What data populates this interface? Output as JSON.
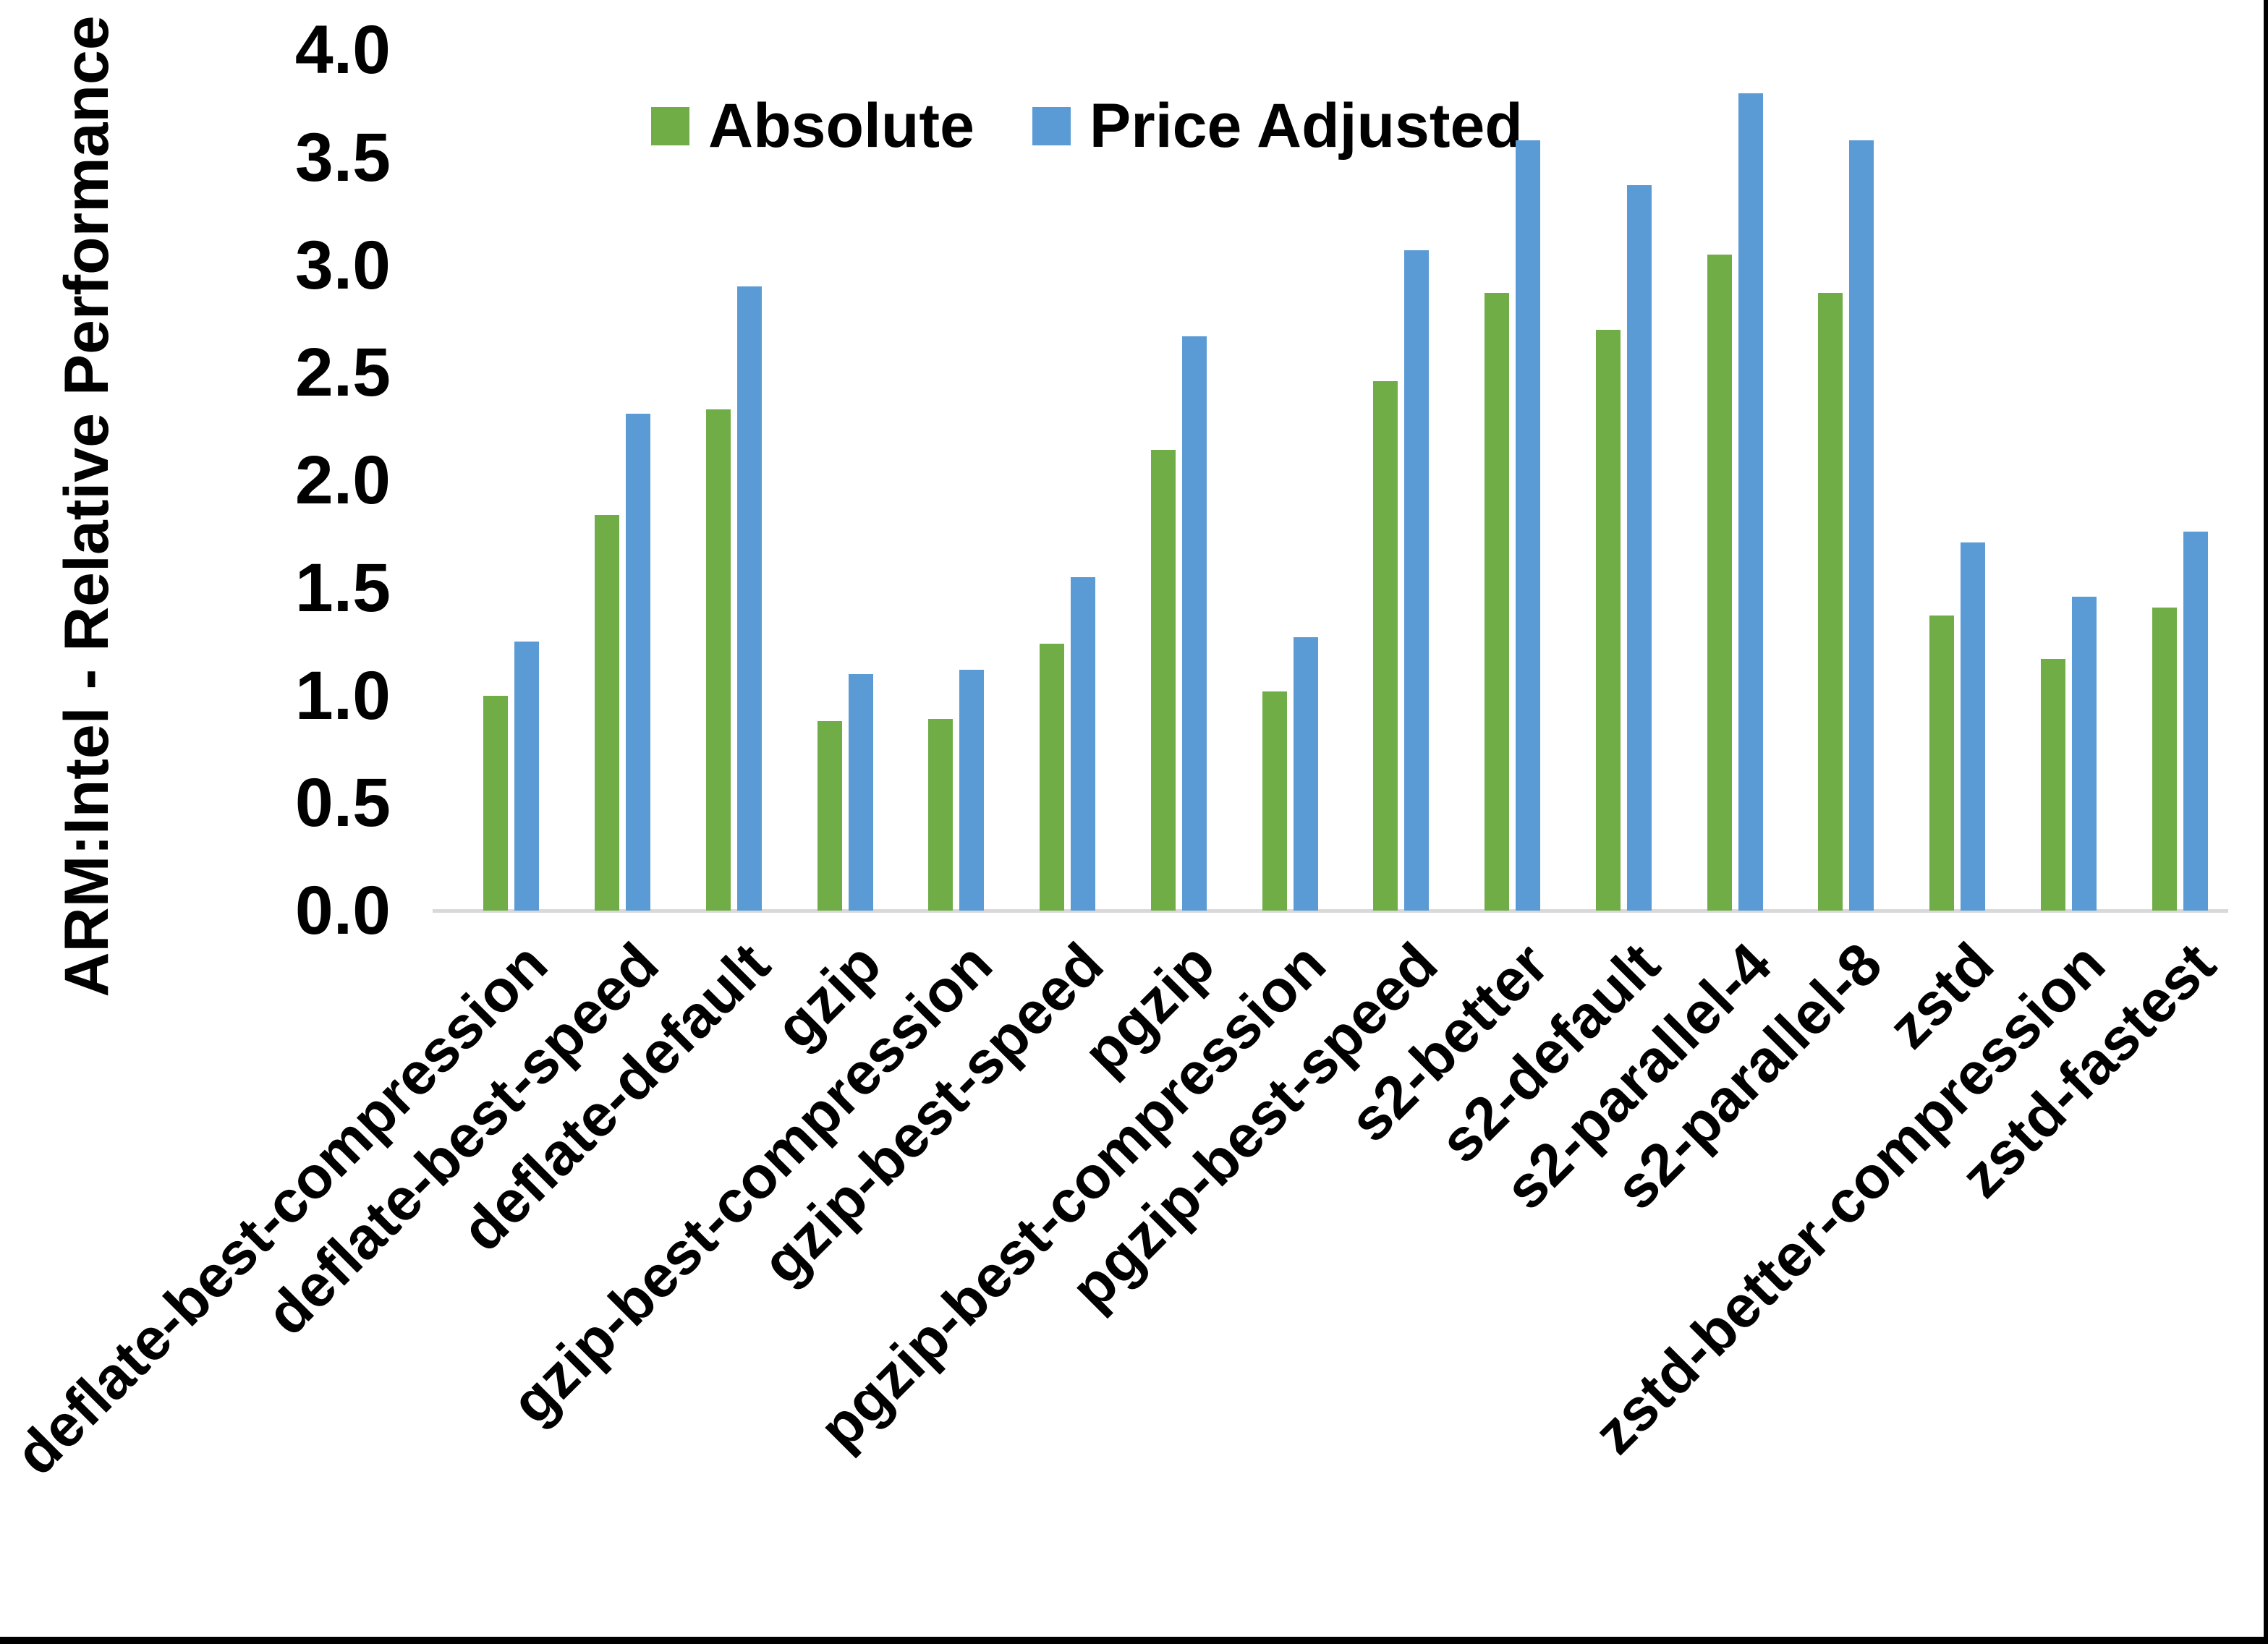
{
  "figure": {
    "colors": {
      "absolute_green": "#70AD47",
      "price_adjusted_blue": "#5B9BD5",
      "axis_line_gray": "#D9D9D9",
      "text": "#000000",
      "edge_border": "#000000"
    }
  },
  "chart_data": {
    "type": "bar",
    "title": "",
    "xlabel": "",
    "ylabel": "ARM:Intel - Relative Performance",
    "ylim": [
      0.0,
      4.0
    ],
    "ytick_step": 0.5,
    "yticks": [
      "0.0",
      "0.5",
      "1.0",
      "1.5",
      "2.0",
      "2.5",
      "3.0",
      "3.5",
      "4.0"
    ],
    "grid": false,
    "legend_position": "top-center",
    "categories": [
      "deflate-best-compression",
      "deflate-best-speed",
      "deflate-default",
      "gzip",
      "gzip-best-compression",
      "gzip-best-speed",
      "pgzip",
      "pgzip-best-compression",
      "pgzip-best-speed",
      "s2-better",
      "s2-default",
      "s2-parallel-4",
      "s2-parallel-8",
      "zstd",
      "zstd-better-compression",
      "zstd-fastest"
    ],
    "series": [
      {
        "name": "Absolute",
        "color": "#70AD47",
        "values": [
          1.0,
          1.84,
          2.33,
          0.88,
          0.89,
          1.24,
          2.14,
          1.02,
          2.46,
          2.87,
          2.7,
          3.05,
          2.87,
          1.37,
          1.17,
          1.41
        ]
      },
      {
        "name": "Price Adjusted",
        "color": "#5B9BD5",
        "values": [
          1.25,
          2.31,
          2.9,
          1.1,
          1.12,
          1.55,
          2.67,
          1.27,
          3.07,
          3.58,
          3.37,
          3.8,
          3.58,
          1.71,
          1.46,
          1.76
        ]
      }
    ]
  }
}
